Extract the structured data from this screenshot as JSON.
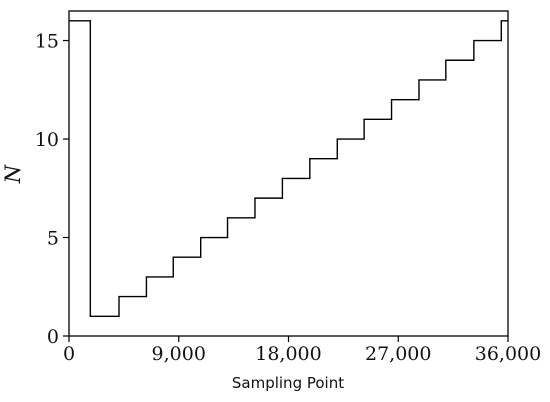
{
  "chart_data": {
    "type": "line",
    "title": "",
    "xlabel": "Sampling Point",
    "ylabel": "N",
    "xlim": [
      0,
      36000
    ],
    "ylim": [
      0,
      16.5
    ],
    "x_ticks": [
      0,
      9000,
      18000,
      27000,
      36000
    ],
    "x_tick_labels": [
      "0",
      "9,000",
      "18,000",
      "27,000",
      "36,000"
    ],
    "y_ticks": [
      0,
      5,
      10,
      15
    ],
    "y_tick_labels": [
      "0",
      "5",
      "10",
      "15"
    ],
    "grid": false,
    "legend": "none",
    "line_color": "#000000",
    "series": [
      {
        "x": [
          0,
          1750,
          1750,
          4100,
          4100,
          6350,
          6350,
          8550,
          8550,
          10800,
          10800,
          13000,
          13000,
          15250,
          15250,
          17500,
          17500,
          19750,
          19750,
          22000,
          22000,
          24200,
          24200,
          26450,
          26450,
          28700,
          28700,
          30900,
          30900,
          33200,
          33200,
          35450,
          35450,
          36000
        ],
        "y": [
          16,
          16,
          1,
          1,
          2,
          2,
          3,
          3,
          4,
          4,
          5,
          5,
          6,
          6,
          7,
          7,
          8,
          8,
          9,
          9,
          10,
          10,
          11,
          11,
          12,
          12,
          13,
          13,
          14,
          14,
          15,
          15,
          16,
          16
        ]
      }
    ]
  }
}
